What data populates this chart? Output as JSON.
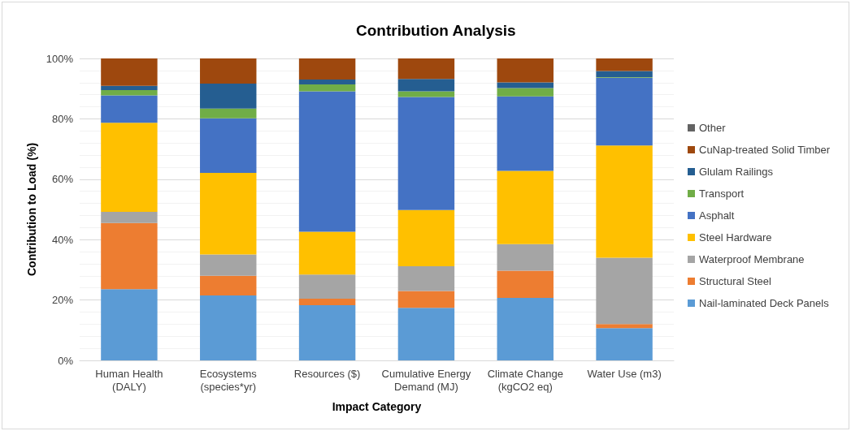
{
  "chart_data": {
    "type": "bar",
    "stacked": true,
    "title": "Contribution Analysis",
    "xlabel": "Impact Category",
    "ylabel": "Contribution to Load (%)",
    "categories": [
      "Human Health\n(DALY)",
      "Ecosystems\n(species*yr)",
      "Resources ($)",
      "Cumulative Energy\nDemand (MJ)",
      "Climate Change\n(kgCO2 eq)",
      "Water Use (m3)"
    ],
    "series": [
      {
        "name": "Nail-laminated Deck Panels",
        "color": "#5b9bd5",
        "values": [
          23.6,
          21.5,
          18.3,
          17.4,
          20.7,
          10.7
        ]
      },
      {
        "name": "Structural Steel",
        "color": "#ed7d31",
        "values": [
          21.9,
          6.5,
          2.1,
          5.6,
          9.0,
          1.3
        ]
      },
      {
        "name": "Waterproof Membrane",
        "color": "#a5a5a5",
        "values": [
          3.7,
          7.1,
          8.0,
          8.2,
          8.8,
          22.0
        ]
      },
      {
        "name": "Steel Hardware",
        "color": "#ffc000",
        "values": [
          29.5,
          27.0,
          14.2,
          18.6,
          24.3,
          37.2
        ]
      },
      {
        "name": "Asphalt",
        "color": "#4472c4",
        "values": [
          9.1,
          18.1,
          46.5,
          37.4,
          24.6,
          22.4
        ]
      },
      {
        "name": "Transport",
        "color": "#70ad47",
        "values": [
          1.7,
          3.2,
          2.3,
          1.9,
          2.8,
          0.2
        ]
      },
      {
        "name": "Glulam Railings",
        "color": "#255e91",
        "values": [
          1.4,
          8.3,
          1.6,
          4.1,
          1.9,
          2.0
        ]
      },
      {
        "name": "CuNap-treated Solid Timber",
        "color": "#9e480e",
        "values": [
          9.1,
          8.3,
          7.0,
          6.8,
          7.9,
          4.2
        ]
      },
      {
        "name": "Other",
        "color": "#636363",
        "values": [
          0,
          0,
          0,
          0,
          0,
          0
        ]
      }
    ],
    "ylim": [
      0,
      100
    ],
    "yticks": [
      {
        "value": 0,
        "label": "0%"
      },
      {
        "value": 20,
        "label": "20%"
      },
      {
        "value": 40,
        "label": "40%"
      },
      {
        "value": 60,
        "label": "60%"
      },
      {
        "value": 80,
        "label": "80%"
      },
      {
        "value": 100,
        "label": "100%"
      }
    ],
    "grid": "y",
    "legend": "right"
  }
}
